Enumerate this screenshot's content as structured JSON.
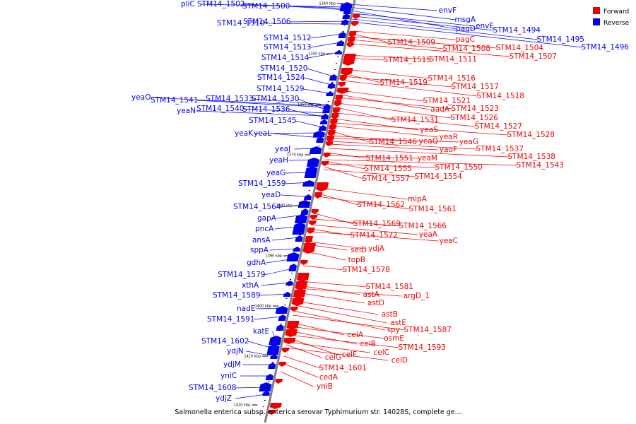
{
  "caption": "Salmonella enterica subsp. enterica serovar Typhimurium str. 14028S, complete ge...",
  "legend": [
    {
      "label": "Forward",
      "color": "#ee0000"
    },
    {
      "label": "Reverse",
      "color": "#0000ee"
    }
  ],
  "colors": {
    "forward": "#ee0000",
    "reverse": "#0000ee",
    "backbone": "#808080"
  },
  "ticks": [
    "1340 kbp",
    "1350 kbp",
    "1360 kbp",
    "1370 kbp",
    "1380 kbp",
    "1390 kbp",
    "1400 kbp",
    "1410 kbp",
    "1420 kbp"
  ],
  "reverse_genes": [
    "pliC",
    "STM14_1502",
    "STM14_1500",
    "STM14_1510",
    "STM14_1506",
    "STM14_1512",
    "STM14_1513",
    "STM14_1514",
    "STM14_1520",
    "STM14_1524",
    "STM14_1529",
    "yeaO",
    "STM14_1541",
    "STM14_1533",
    "STM14_1530",
    "yeaN",
    "STM14_1540",
    "STM14_1536",
    "STM14_1545",
    "yeaK",
    "yeaL",
    "yeaJ",
    "yeaH",
    "yeaG",
    "STM14_1559",
    "yeaD",
    "STM14_1564",
    "gapA",
    "pncA",
    "ansA",
    "sppA",
    "gdhA",
    "STM14_1579",
    "xthA",
    "STM14_1589",
    "nadE",
    "STM14_1591",
    "katE",
    "STM14_1602",
    "ydjN",
    "ydjM",
    "yniC",
    "STM14_1608",
    "ydjZ",
    "envF",
    "msgA",
    "envE",
    "pagD",
    "STM14_1494",
    "STM14_1495",
    "STM14_1496"
  ],
  "forward_genes": [
    "pagC",
    "STM14_1509",
    "STM14_1508",
    "STM14_1504",
    "STM14_1507",
    "STM14_1515",
    "STM14_1511",
    "STM14_1516",
    "STM14_1519",
    "STM14_1517",
    "STM14_1518",
    "STM14_1521",
    "aadA",
    "STM14_1523",
    "STM14_1526",
    "STM14_1531",
    "STM14_1527",
    "yeaS",
    "STM14_1528",
    "yeaR",
    "STM14_1546",
    "yeaQ",
    "yeaG",
    "STM14_1537",
    "yaoF",
    "STM14_1538",
    "STM14_1551",
    "yeaM",
    "STM14_1543",
    "STM14_1555",
    "STM14_1550",
    "STM14_1557",
    "STM14_1554",
    "mipA",
    "STM14_1562",
    "STM14_1561",
    "STM14_1569",
    "STM14_1566",
    "yeaA",
    "STM14_1572",
    "yeaC",
    "ydjA",
    "selD",
    "topB",
    "STM14_1578",
    "STM14_1581",
    "astA",
    "argD_1",
    "astD",
    "astB",
    "astE",
    "spy",
    "STM14_1587",
    "celA",
    "osmE",
    "celB",
    "STM14_1593",
    "celF",
    "celC",
    "celG",
    "celD",
    "STM14_1601",
    "cedA",
    "yniB"
  ]
}
